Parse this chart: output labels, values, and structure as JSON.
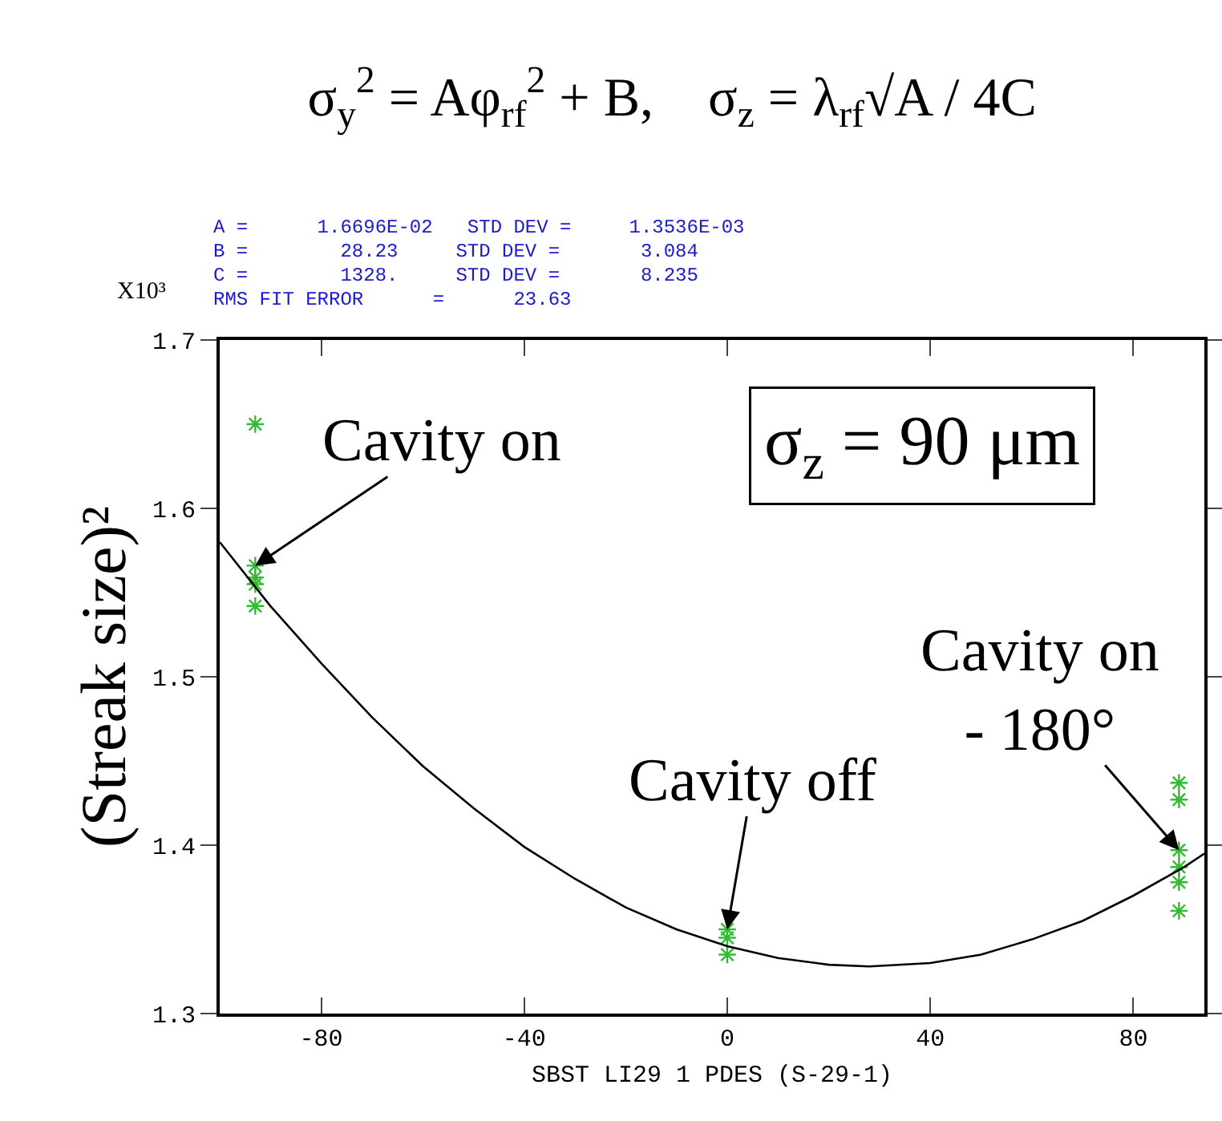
{
  "chart_data": {
    "type": "scatter",
    "title": "σ$_{y}$$^{2}$ = Aφ$_{rf}$$^{2}$ + B,    σ$_{z}$ = λ$_{rf}$√A / 4C",
    "xlabel": "SBST LI29 1 PDES (S-29-1)",
    "ylabel": "(Streak size)²",
    "xlim": [
      -100,
      94
    ],
    "xticks": [
      -80,
      -40,
      0,
      40,
      80
    ],
    "ylim": [
      1.3,
      1.7
    ],
    "yticks": [
      1.3,
      1.4,
      1.5,
      1.6,
      1.7
    ],
    "grid": false,
    "series": [
      {
        "color": "#33bb33",
        "marker": "cross",
        "x": [
          -93,
          -93,
          -93,
          -93,
          -93,
          0,
          0,
          0,
          89,
          89,
          89,
          89,
          89,
          89
        ],
        "values": [
          1.65,
          1.566,
          1.559,
          1.555,
          1.542,
          1.35,
          1.345,
          1.335,
          1.437,
          1.427,
          1.397,
          1.387,
          1.378,
          1.361
        ]
      },
      {
        "type": "line",
        "marker": "none",
        "color": "#000000",
        "x": [
          -100,
          -90,
          -80,
          -70,
          -60,
          -50,
          -40,
          -30,
          -20,
          -10,
          0,
          10,
          20,
          28,
          40,
          50,
          60,
          70,
          80,
          90,
          94
        ],
        "values": [
          1.58,
          1.542,
          1.508,
          1.476,
          1.447,
          1.422,
          1.399,
          1.38,
          1.363,
          1.35,
          1.34,
          1.333,
          1.329,
          1.328,
          1.33,
          1.335,
          1.344,
          1.355,
          1.37,
          1.387,
          1.395
        ]
      }
    ],
    "annotations": [
      "X10³",
      "A =      1.6696E-02   STD DEV =     1.3536E-03",
      "B =        28.23     STD DEV =       3.084",
      "C =        1328.     STD DEV =       8.235",
      "RMS FIT ERROR      =      23.63",
      "σ$_{z}$ = 90 μm",
      {
        "text": "Cavity on",
        "x": -93,
        "y": 1.566
      },
      {
        "text": "Cavity off",
        "x": 0,
        "y": 1.35
      },
      {
        "text": "Cavity on\n- 180°",
        "x": 89,
        "y": 1.397
      }
    ]
  }
}
